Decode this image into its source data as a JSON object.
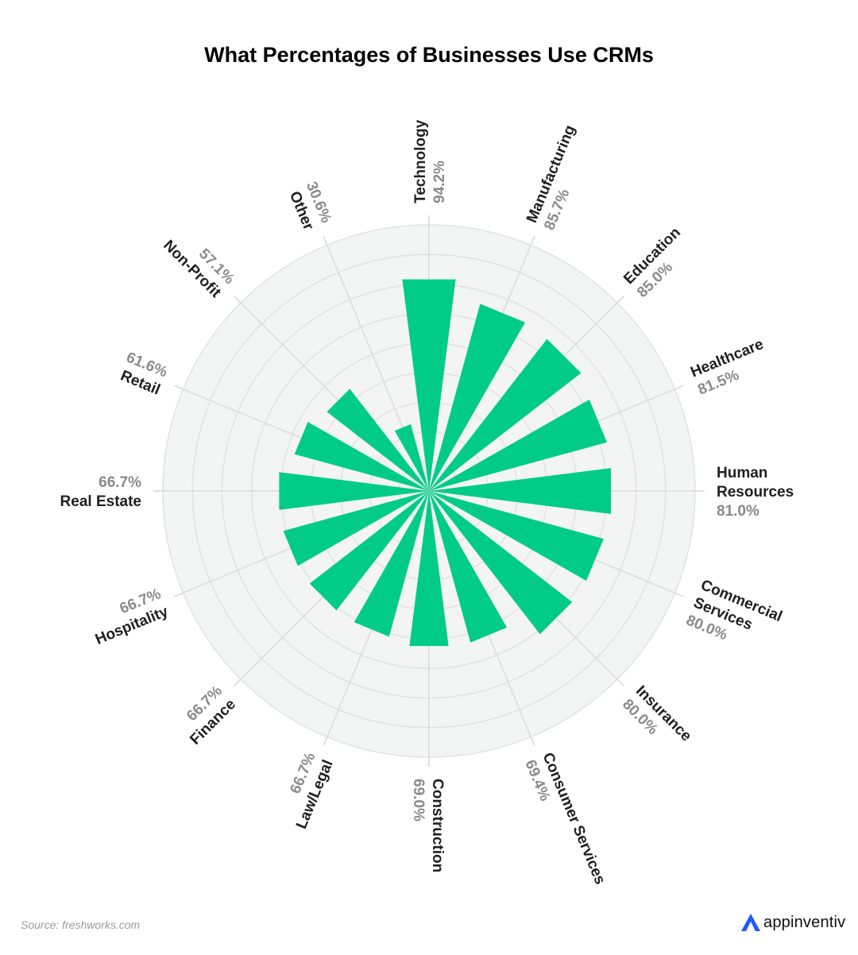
{
  "title": "What Percentages of Businesses Use CRMs",
  "source": "Source: freshworks.com",
  "brand": {
    "name": "appinventiv",
    "logo_icon": "appinventiv-logo-icon"
  },
  "colors": {
    "bar": "#00CC88",
    "disc": "#F3F4F4",
    "grid_circle": "#E2E2E2",
    "spoke": "#E0E0E0",
    "category_text": "#1F1F1F",
    "value_text": "#8A8A8A",
    "brand_accent": "#1E5BFF"
  },
  "chart_data": {
    "type": "bar",
    "subtype": "polar",
    "title": "What Percentages of Businesses Use CRMs",
    "categories": [
      [
        "Technology"
      ],
      [
        "Manufacturing"
      ],
      [
        "Education"
      ],
      [
        "Healthcare"
      ],
      [
        "Human",
        "Resources"
      ],
      [
        "Commercial",
        "Services"
      ],
      [
        "Insurance"
      ],
      [
        "Consumer Services"
      ],
      [
        "Construction"
      ],
      [
        "Law/Legal"
      ],
      [
        "Finance"
      ],
      [
        "Hospitality"
      ],
      [
        "Real Estate"
      ],
      [
        "Retail"
      ],
      [
        "Non-Profit"
      ],
      [
        "Other"
      ]
    ],
    "values": [
      94.2,
      85.7,
      85.0,
      81.5,
      81.0,
      80.0,
      80.0,
      69.4,
      69.0,
      66.7,
      66.7,
      66.7,
      66.7,
      61.6,
      57.1,
      30.6
    ],
    "value_labels": [
      "94.2%",
      "85.7%",
      "85.0%",
      "81.5%",
      "81.0%",
      "80.0%",
      "80.0%",
      "69.4%",
      "69.0%",
      "66.7%",
      "66.7%",
      "66.7%",
      "66.7%",
      "61.6%",
      "57.1%",
      "30.6%"
    ],
    "radial_range": [
      0,
      100
    ],
    "grid": true
  }
}
